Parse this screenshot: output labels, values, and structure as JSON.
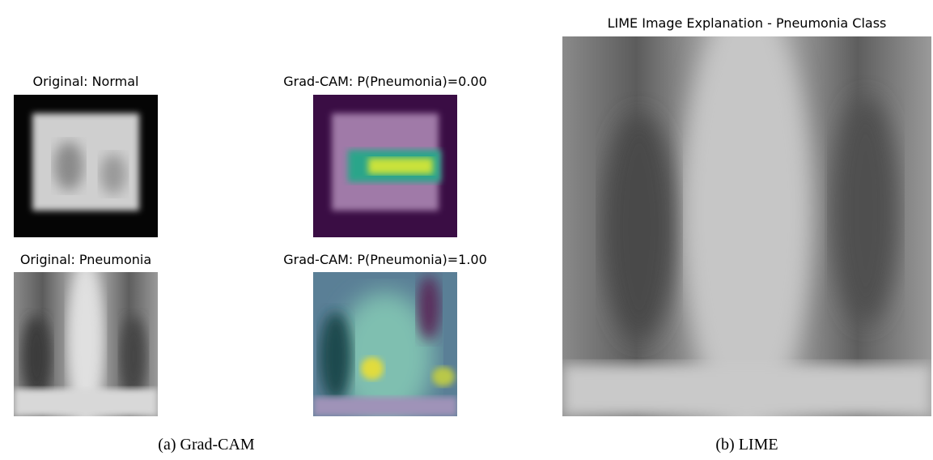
{
  "figure": {
    "panels": [
      {
        "title": "Original: Normal"
      },
      {
        "title": "Grad-CAM: P(Pneumonia)=0.00"
      },
      {
        "title": "Original: Pneumonia"
      },
      {
        "title": "Grad-CAM: P(Pneumonia)=1.00"
      },
      {
        "title": "LIME Image Explanation - Pneumonia Class"
      }
    ],
    "captions": [
      "(a) Grad-CAM",
      "(b) LIME"
    ]
  }
}
